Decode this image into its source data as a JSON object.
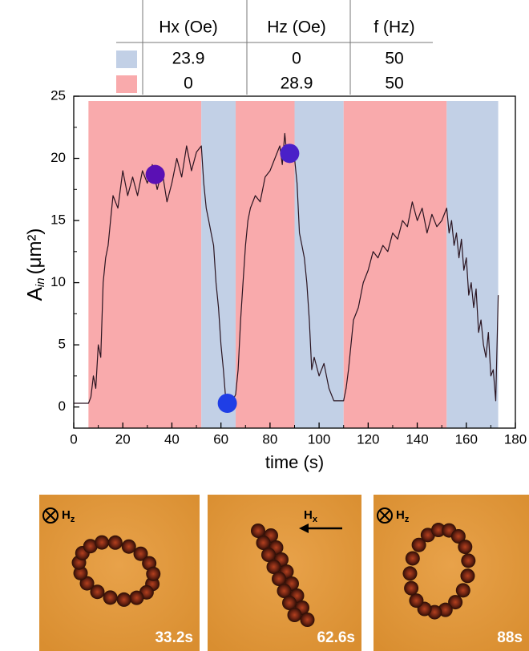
{
  "chart_data": {
    "type": "line",
    "table": {
      "headers": [
        "Hx (Oe)",
        "Hz (Oe)",
        "f (Hz)"
      ],
      "rows": [
        {
          "color": "#c2d0e6",
          "values": [
            23.9,
            0,
            50
          ]
        },
        {
          "color": "#f9aaac",
          "values": [
            0,
            28.9,
            50
          ]
        }
      ]
    },
    "xlabel": "time (s)",
    "ylabel": "A",
    "ylabel_sub": "in",
    "ylabel_unit": "(μm²)",
    "xlim": [
      0,
      180
    ],
    "ylim": [
      -1.7,
      25
    ],
    "xticks": [
      0,
      20,
      40,
      60,
      80,
      100,
      120,
      140,
      160,
      180
    ],
    "yticks": [
      0,
      5,
      10,
      15,
      20,
      25
    ],
    "regions": [
      {
        "start": 6,
        "end": 52,
        "color": "#f9aaac"
      },
      {
        "start": 52,
        "end": 66,
        "color": "#c2d0e6"
      },
      {
        "start": 66,
        "end": 90,
        "color": "#f9aaac"
      },
      {
        "start": 90,
        "end": 110,
        "color": "#c2d0e6"
      },
      {
        "start": 110,
        "end": 152,
        "color": "#f9aaac"
      },
      {
        "start": 152,
        "end": 173,
        "color": "#c2d0e6"
      }
    ],
    "line": {
      "color": "#2a1420",
      "x": [
        0,
        3,
        6,
        7,
        8,
        9,
        10,
        11,
        12,
        13,
        14,
        15,
        16,
        18,
        20,
        22,
        24,
        26,
        28,
        30,
        32,
        34,
        36,
        38,
        40,
        42,
        44,
        46,
        48,
        50,
        52,
        53,
        54,
        55,
        56,
        57,
        58,
        59,
        60,
        61,
        62,
        63,
        64,
        65,
        66,
        67,
        68,
        69,
        70,
        71,
        72,
        74,
        76,
        78,
        80,
        82,
        84,
        85,
        86,
        87,
        88,
        89,
        90,
        91,
        92,
        93,
        94,
        95,
        96,
        97,
        98,
        100,
        102,
        104,
        106,
        108,
        110,
        111,
        112,
        113,
        114,
        116,
        118,
        120,
        122,
        124,
        126,
        128,
        130,
        132,
        134,
        136,
        138,
        140,
        142,
        144,
        146,
        148,
        150,
        152,
        153,
        154,
        155,
        156,
        157,
        158,
        159,
        160,
        161,
        162,
        163,
        164,
        165,
        166,
        167,
        168,
        169,
        170,
        171,
        172,
        173
      ],
      "y": [
        0.3,
        0.3,
        0.3,
        0.8,
        2.5,
        1.5,
        5,
        4,
        10,
        12,
        13,
        15,
        17,
        16,
        19,
        17,
        18.5,
        17,
        19,
        18,
        19.5,
        17.5,
        19,
        16.5,
        18,
        20,
        18.5,
        21,
        19,
        20.5,
        21,
        18,
        16,
        15,
        14,
        13,
        10,
        8,
        5,
        3,
        0.5,
        0.3,
        0.3,
        0.6,
        1,
        3,
        7,
        10,
        13,
        15,
        16,
        17,
        16.5,
        18.5,
        19,
        20,
        21,
        19.5,
        22,
        20,
        21,
        20.5,
        20,
        18,
        14,
        13,
        12,
        10,
        7,
        3,
        4,
        2.5,
        3.5,
        1.5,
        0.5,
        0.5,
        0.5,
        1.5,
        3,
        5,
        7,
        8,
        10,
        11,
        12.5,
        12,
        13,
        12.5,
        14,
        13.5,
        15,
        14.5,
        16.5,
        15,
        16,
        14,
        15.5,
        14.5,
        15,
        16,
        14,
        15,
        13,
        14,
        12,
        13.5,
        11,
        12,
        9,
        10,
        8,
        9.5,
        6,
        7,
        5,
        4,
        6,
        2.5,
        3,
        0.5,
        9
      ]
    },
    "markers": [
      {
        "x": 33.2,
        "y": 18.7,
        "color": "#5a10b4"
      },
      {
        "x": 62.6,
        "y": 0.3,
        "color": "#1f3ee6"
      },
      {
        "x": 88,
        "y": 20.4,
        "color": "#4a20c8"
      }
    ],
    "images": [
      {
        "time_label": "33.2s",
        "field_label": "H",
        "field_sub": "z"
      },
      {
        "time_label": "62.6s",
        "field_label": "H",
        "field_sub": "x"
      },
      {
        "time_label": "88s",
        "field_label": "H",
        "field_sub": "z"
      }
    ]
  }
}
